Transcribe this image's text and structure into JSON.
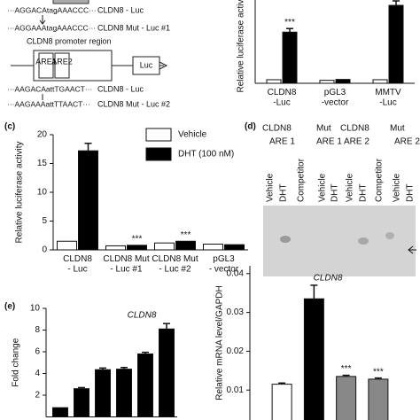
{
  "panel_a": {
    "lines": [
      {
        "seq": "···AGGACAtagAAACCC···",
        "label": "CLDN8 - Luc"
      },
      {
        "seq": "···AGGAAAtagAAACCC···",
        "label": "CLDN8 Mut - Luc #1"
      },
      {
        "seq": "···AAGACAattTGAACT···",
        "label": "CLDN8 - Luc"
      },
      {
        "seq": "···AAGAAAattTTAACT···",
        "label": "CLDN8 Mut - Luc #2"
      }
    ],
    "promoter": "CLDN8 promoter region",
    "are1": "ARE1",
    "are2": "ARE2",
    "luc": "Luc"
  },
  "panel_d": {
    "label": "(d)",
    "groups": [
      {
        "name": "CLDN8",
        "site": "ARE 1",
        "lanes": [
          "Vehicle",
          "DHT",
          "Competitor"
        ]
      },
      {
        "name": "Mut",
        "site": "ARE 1",
        "lanes": [
          "Vehicle",
          "DHT"
        ]
      },
      {
        "name": "CLDN8",
        "site": "ARE 2",
        "lanes": [
          "Vehicle",
          "DHT",
          "Competitor"
        ]
      },
      {
        "name": "Mut",
        "site": "ARE 2",
        "lanes": [
          "Vehicle",
          "DHT"
        ]
      }
    ]
  },
  "chart_data": [
    {
      "type": "bar",
      "ylabel": "Relative luciferase activity",
      "categories": [
        "CLDN8\n-Luc",
        "pGL3\n-vector",
        "MMTV\n-Luc"
      ],
      "series": [
        {
          "color": "#ffffff",
          "values": [
            1.2,
            1.0,
            1.2
          ]
        },
        {
          "color": "#000000",
          "values": [
            17.2,
            1.3,
            26.2
          ],
          "errors": [
            1.2,
            null,
            1.5
          ],
          "significance": [
            "***",
            null,
            null
          ]
        }
      ],
      "ylim": [
        0,
        28
      ]
    },
    {
      "type": "bar",
      "panel": "(c)",
      "ylabel": "Relative luciferase activity",
      "categories": [
        "CLDN8\n- Luc",
        "CLDN8 Mut\n- Luc #1",
        "CLDN8 Mut\n- Luc #2",
        "pGL3\n- vector"
      ],
      "series": [
        {
          "name": "Vehicle",
          "color": "#ffffff",
          "values": [
            1.5,
            0.7,
            1.2,
            1.0
          ]
        },
        {
          "name": "DHT (100 nM)",
          "color": "#000000",
          "values": [
            17.2,
            0.8,
            1.5,
            0.9
          ],
          "errors": [
            1.3,
            null,
            null,
            null
          ],
          "significance": [
            null,
            "***",
            "***",
            null
          ]
        }
      ],
      "ylim": [
        0,
        20
      ],
      "yticks": [
        0,
        5,
        10,
        15,
        20
      ]
    },
    {
      "type": "bar",
      "panel": "(e)",
      "title": "CLDN8",
      "ylabel": "Fold change",
      "categories": [
        null,
        null,
        null,
        null,
        null,
        null
      ],
      "series": [
        {
          "color": "#000000",
          "values": [
            0.85,
            2.6,
            4.35,
            4.4,
            5.8,
            8.1
          ],
          "errors": [
            null,
            0.1,
            0.15,
            0.15,
            0.15,
            0.5
          ]
        }
      ],
      "ylim": [
        0,
        10
      ],
      "yticks": [
        2,
        4,
        6,
        8,
        10
      ]
    },
    {
      "type": "bar",
      "title": "CLDN8",
      "ylabel": "Relative mRNA level/GAPDH",
      "categories": [
        null,
        null,
        null,
        null
      ],
      "series": [
        {
          "colors": [
            "#ffffff",
            "#000000",
            "#888888",
            "#888888"
          ],
          "values": [
            0.0115,
            0.0335,
            0.0135,
            0.0128
          ],
          "errors": [
            0.0003,
            0.0035,
            0.0003,
            0.0003
          ],
          "significance": [
            null,
            null,
            "***",
            "***"
          ]
        }
      ],
      "ylim": [
        0,
        0.042
      ],
      "yticks": [
        0.01,
        0.02,
        0.03,
        0.04
      ]
    }
  ]
}
